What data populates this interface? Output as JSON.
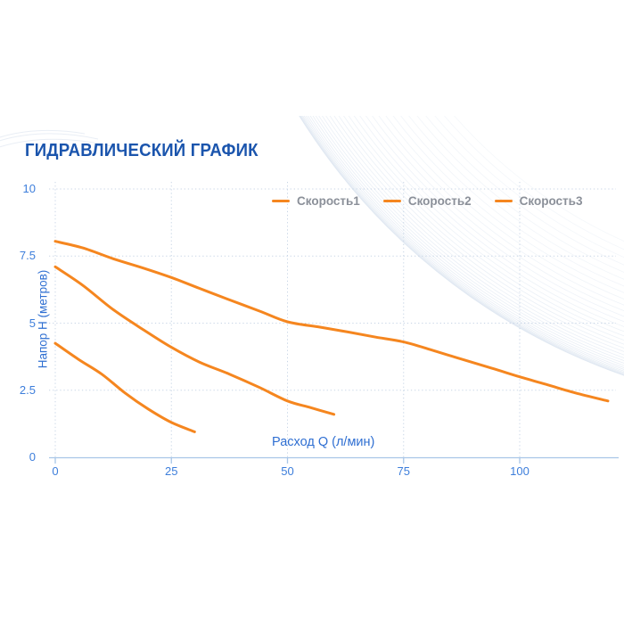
{
  "page": {
    "title": "ГИДРАВЛИЧЕСКИЙ ГРАФИК"
  },
  "colors": {
    "title": "#1b55ad",
    "curve_orange": "#f5861f",
    "tick_text": "#3d7edb",
    "axis_label_text": "#2f6fd2",
    "legend_text": "#8b9099",
    "gridline": "#c8d5e6",
    "axis_line": "#a8c6e8",
    "decoration": "#dfe7f1"
  },
  "chart_data": {
    "type": "line",
    "title": "ГИДРАВЛИЧЕСКИЙ ГРАФИК",
    "xlabel": "Расход Q (л/мин)",
    "ylabel": "Напор H (метров)",
    "xlim": [
      0,
      120
    ],
    "ylim": [
      0,
      10
    ],
    "x_ticks": [
      "0",
      "25",
      "50",
      "75",
      "100"
    ],
    "y_ticks": [
      "0",
      "2.5",
      "5",
      "7.5",
      "10"
    ],
    "grid": "dotted",
    "legend_position": "top-center-inside",
    "series": [
      {
        "name": "Скорость1",
        "color": "#f5861f",
        "points": [
          [
            0,
            4.25
          ],
          [
            5,
            3.65
          ],
          [
            10,
            3.1
          ],
          [
            15,
            2.4
          ],
          [
            20,
            1.8
          ],
          [
            25,
            1.3
          ],
          [
            30,
            0.95
          ]
        ]
      },
      {
        "name": "Скорость2",
        "color": "#f5861f",
        "points": [
          [
            0,
            7.1
          ],
          [
            6,
            6.4
          ],
          [
            12.5,
            5.5
          ],
          [
            19,
            4.75
          ],
          [
            25,
            4.1
          ],
          [
            31,
            3.55
          ],
          [
            37.5,
            3.1
          ],
          [
            44,
            2.6
          ],
          [
            50,
            2.1
          ],
          [
            55,
            1.85
          ],
          [
            60,
            1.6
          ]
        ]
      },
      {
        "name": "Скорость3",
        "color": "#f5861f",
        "points": [
          [
            0,
            8.05
          ],
          [
            6,
            7.8
          ],
          [
            12.5,
            7.4
          ],
          [
            19,
            7.05
          ],
          [
            25,
            6.7
          ],
          [
            31,
            6.3
          ],
          [
            37,
            5.9
          ],
          [
            44,
            5.45
          ],
          [
            50,
            5.05
          ],
          [
            57,
            4.85
          ],
          [
            63,
            4.67
          ],
          [
            69,
            4.48
          ],
          [
            75,
            4.3
          ],
          [
            81,
            4.0
          ],
          [
            88,
            3.63
          ],
          [
            94,
            3.32
          ],
          [
            100,
            3.0
          ],
          [
            106,
            2.7
          ],
          [
            112,
            2.4
          ],
          [
            119,
            2.1
          ]
        ]
      }
    ]
  }
}
